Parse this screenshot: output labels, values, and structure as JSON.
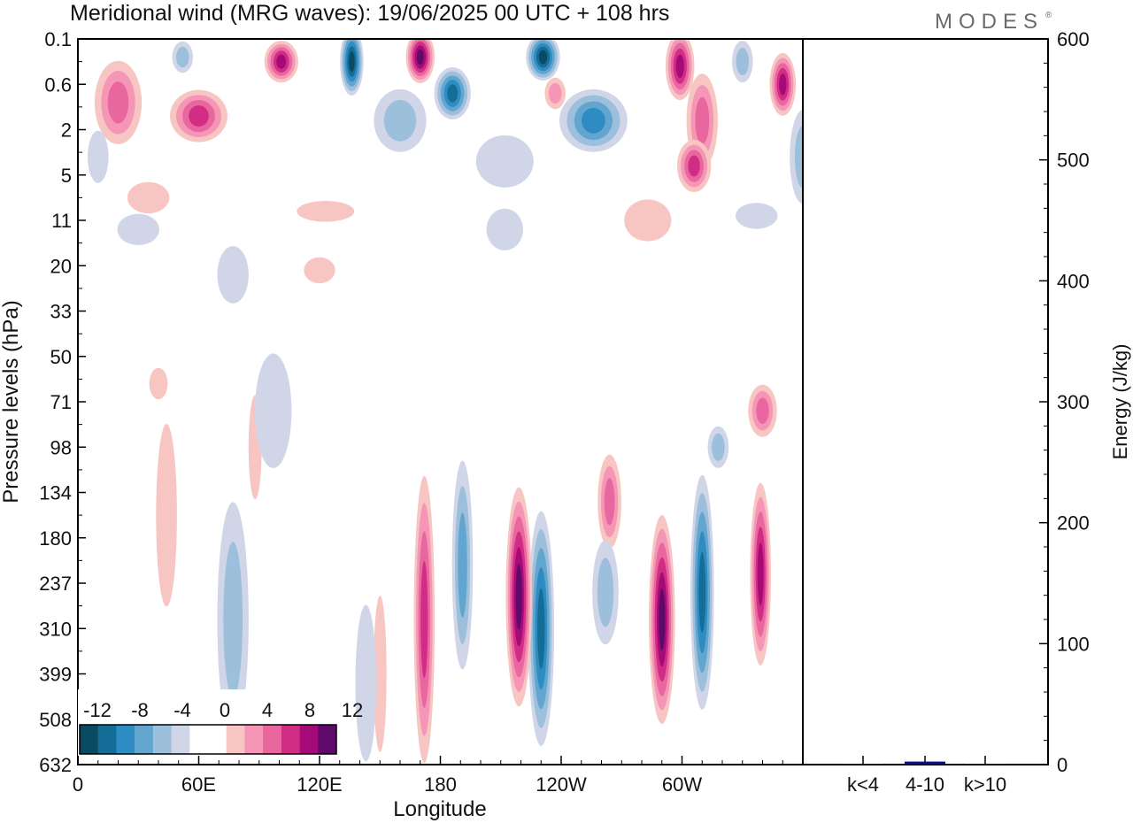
{
  "header": {
    "title": "Meridional wind (MRG waves):  19/06/2025  00 UTC  + 108 hrs",
    "logo": "MODES",
    "logo_mark": "®"
  },
  "colors": {
    "neg": [
      "#0a4a63",
      "#146d97",
      "#2e8cc2",
      "#62a6d0",
      "#9cbfdc",
      "#d0d6e8"
    ],
    "pos": [
      "#f7c6c3",
      "#f596b7",
      "#e9679f",
      "#d12d85",
      "#a60a79",
      "#5e0a6a"
    ],
    "frame": "#000000"
  },
  "chart_data": [
    {
      "type": "heatmap",
      "title": "Meridional wind (MRG waves):  19/06/2025  00 UTC  + 108 hrs",
      "xlabel": "Longitude",
      "ylabel": "Pressure levels (hPa)",
      "x_ticks": [
        "0",
        "60E",
        "120E",
        "180",
        "120W",
        "60W"
      ],
      "x_tick_degrees": [
        0,
        60,
        120,
        180,
        240,
        300
      ],
      "x_range_degrees": [
        0,
        360
      ],
      "y_ticks": [
        "0.1",
        "0.6",
        "2",
        "5",
        "11",
        "20",
        "33",
        "50",
        "71",
        "98",
        "134",
        "180",
        "237",
        "310",
        "399",
        "508",
        "632"
      ],
      "y_axis": "pressure levels, top to bottom",
      "colorbar": {
        "labels": [
          "-12",
          "-8",
          "-4",
          "0",
          "4",
          "8",
          "12"
        ],
        "contour_levels": [
          -12,
          -10,
          -8,
          -6,
          -4,
          -2,
          0,
          2,
          4,
          6,
          8,
          10,
          12
        ]
      },
      "features": [
        {
          "sign": -1,
          "intensity": 5,
          "lon": 230,
          "level_index": 13.0,
          "width_deg": 10,
          "height_levels": 4.5
        },
        {
          "sign": -1,
          "intensity": 5,
          "lon": 310,
          "level_index": 12.2,
          "width_deg": 9,
          "height_levels": 4.5
        },
        {
          "sign": 1,
          "intensity": 6,
          "lon": 219,
          "level_index": 12.3,
          "width_deg": 10,
          "height_levels": 4.2
        },
        {
          "sign": 1,
          "intensity": 6,
          "lon": 290,
          "level_index": 12.8,
          "width_deg": 10,
          "height_levels": 4.0
        },
        {
          "sign": 1,
          "intensity": 5,
          "lon": 339,
          "level_index": 11.8,
          "width_deg": 8,
          "height_levels": 3.5
        },
        {
          "sign": 1,
          "intensity": 4,
          "lon": 172,
          "level_index": 12.8,
          "width_deg": 8,
          "height_levels": 5.5
        },
        {
          "sign": -1,
          "intensity": 3,
          "lon": 191,
          "level_index": 11.6,
          "width_deg": 8,
          "height_levels": 4.0
        },
        {
          "sign": 1,
          "intensity": 3,
          "lon": 264,
          "level_index": 10.2,
          "width_deg": 9,
          "height_levels": 1.8
        },
        {
          "sign": -1,
          "intensity": 2,
          "lon": 262,
          "level_index": 12.2,
          "width_deg": 10,
          "height_levels": 2.0
        },
        {
          "sign": -1,
          "intensity": 2,
          "lon": 77,
          "level_index": 12.8,
          "width_deg": 12,
          "height_levels": 4.5
        },
        {
          "sign": 1,
          "intensity": 1,
          "lon": 150,
          "level_index": 14.0,
          "width_deg": 5,
          "height_levels": 3.0
        },
        {
          "sign": -1,
          "intensity": 1,
          "lon": 143,
          "level_index": 14.2,
          "width_deg": 8,
          "height_levels": 3.0
        },
        {
          "sign": 1,
          "intensity": 3,
          "lon": 340,
          "level_index": 8.2,
          "width_deg": 11,
          "height_levels": 1.0
        },
        {
          "sign": -1,
          "intensity": 2,
          "lon": 318,
          "level_index": 9.0,
          "width_deg": 8,
          "height_levels": 0.8
        },
        {
          "sign": 1,
          "intensity": 1,
          "lon": 44,
          "level_index": 10.5,
          "width_deg": 8,
          "height_levels": 3.5
        },
        {
          "sign": 1,
          "intensity": 1,
          "lon": 88,
          "level_index": 9.0,
          "width_deg": 5,
          "height_levels": 2.0
        },
        {
          "sign": -1,
          "intensity": 1,
          "lon": 97,
          "level_index": 8.2,
          "width_deg": 14,
          "height_levels": 2.2
        },
        {
          "sign": 1,
          "intensity": 1,
          "lon": 40,
          "level_index": 7.6,
          "width_deg": 7,
          "height_levels": 0.6
        },
        {
          "sign": -1,
          "intensity": 6,
          "lon": 136,
          "level_index": 0.5,
          "width_deg": 9,
          "height_levels": 1.3
        },
        {
          "sign": 1,
          "intensity": 6,
          "lon": 170,
          "level_index": 0.4,
          "width_deg": 11,
          "height_levels": 1.0
        },
        {
          "sign": 1,
          "intensity": 5,
          "lon": 101,
          "level_index": 0.5,
          "width_deg": 13,
          "height_levels": 0.8
        },
        {
          "sign": -1,
          "intensity": 6,
          "lon": 231,
          "level_index": 0.4,
          "width_deg": 13,
          "height_levels": 0.9
        },
        {
          "sign": 1,
          "intensity": 5,
          "lon": 299,
          "level_index": 0.6,
          "width_deg": 11,
          "height_levels": 1.3
        },
        {
          "sign": 1,
          "intensity": 5,
          "lon": 350,
          "level_index": 1.0,
          "width_deg": 10,
          "height_levels": 1.2
        },
        {
          "sign": -1,
          "intensity": 5,
          "lon": 186,
          "level_index": 1.2,
          "width_deg": 14,
          "height_levels": 1.0
        },
        {
          "sign": -1,
          "intensity": 4,
          "lon": 256,
          "level_index": 1.8,
          "width_deg": 26,
          "height_levels": 1.2
        },
        {
          "sign": 1,
          "intensity": 4,
          "lon": 60,
          "level_index": 1.7,
          "width_deg": 22,
          "height_levels": 1.0
        },
        {
          "sign": 1,
          "intensity": 3,
          "lon": 20,
          "level_index": 1.4,
          "width_deg": 18,
          "height_levels": 1.6
        },
        {
          "sign": 1,
          "intensity": 3,
          "lon": 310,
          "level_index": 1.8,
          "width_deg": 12,
          "height_levels": 1.8
        },
        {
          "sign": 1,
          "intensity": 4,
          "lon": 306,
          "level_index": 2.8,
          "width_deg": 13,
          "height_levels": 1.0
        },
        {
          "sign": -1,
          "intensity": 2,
          "lon": 160,
          "level_index": 1.8,
          "width_deg": 20,
          "height_levels": 1.2
        },
        {
          "sign": 1,
          "intensity": 2,
          "lon": 237,
          "level_index": 1.2,
          "width_deg": 8,
          "height_levels": 0.6
        },
        {
          "sign": -1,
          "intensity": 2,
          "lon": 330,
          "level_index": 0.5,
          "width_deg": 8,
          "height_levels": 0.8
        },
        {
          "sign": -1,
          "intensity": 2,
          "lon": 360,
          "level_index": 2.6,
          "width_deg": 10,
          "height_levels": 1.8
        },
        {
          "sign": -1,
          "intensity": 1,
          "lon": 212,
          "level_index": 2.7,
          "width_deg": 22,
          "height_levels": 1.0
        },
        {
          "sign": -1,
          "intensity": 2,
          "lon": 52,
          "level_index": 0.4,
          "width_deg": 8,
          "height_levels": 0.6
        },
        {
          "sign": 1,
          "intensity": 1,
          "lon": 35,
          "level_index": 3.5,
          "width_deg": 16,
          "height_levels": 0.6
        },
        {
          "sign": 1,
          "intensity": 1,
          "lon": 123,
          "level_index": 3.8,
          "width_deg": 22,
          "height_levels": 0.4
        },
        {
          "sign": 1,
          "intensity": 1,
          "lon": 120,
          "level_index": 5.1,
          "width_deg": 12,
          "height_levels": 0.5
        },
        {
          "sign": -1,
          "intensity": 1,
          "lon": 77,
          "level_index": 5.2,
          "width_deg": 12,
          "height_levels": 1.1
        },
        {
          "sign": -1,
          "intensity": 1,
          "lon": 212,
          "level_index": 4.2,
          "width_deg": 14,
          "height_levels": 0.8
        },
        {
          "sign": 1,
          "intensity": 1,
          "lon": 283,
          "level_index": 4.0,
          "width_deg": 18,
          "height_levels": 0.8
        },
        {
          "sign": -1,
          "intensity": 1,
          "lon": 337,
          "level_index": 3.9,
          "width_deg": 16,
          "height_levels": 0.5
        },
        {
          "sign": -1,
          "intensity": 1,
          "lon": 30,
          "level_index": 4.2,
          "width_deg": 16,
          "height_levels": 0.6
        },
        {
          "sign": -1,
          "intensity": 1,
          "lon": 10,
          "level_index": 2.6,
          "width_deg": 8,
          "height_levels": 1.0
        }
      ]
    },
    {
      "type": "bar",
      "categories": [
        "k<4",
        "4-10",
        "k>10"
      ],
      "values": [
        0.5,
        2.5,
        0.5
      ],
      "ylabel": "Energy (J/kg)",
      "ylim": [
        0,
        600
      ],
      "y_ticks": [
        0,
        100,
        200,
        300,
        400,
        500,
        600
      ],
      "colors": [
        "#0b0b8c",
        "#0b0b8c",
        "#0b0b8c"
      ]
    }
  ]
}
